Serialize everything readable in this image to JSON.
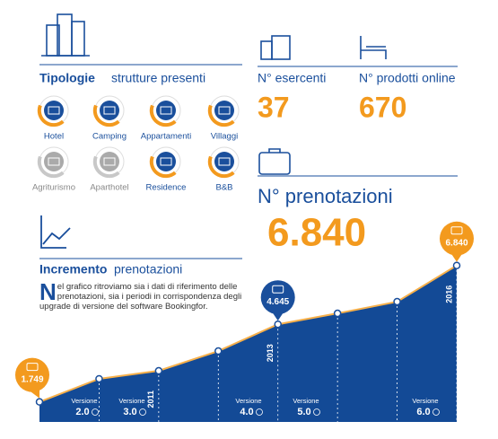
{
  "structures": {
    "title_bold": "Tipologie",
    "title_rest": "strutture presenti",
    "items": [
      {
        "label": "Hotel",
        "color": "#f39a1e"
      },
      {
        "label": "Camping",
        "color": "#f39a1e"
      },
      {
        "label": "Appartamenti",
        "color": "#f39a1e"
      },
      {
        "label": "Villaggi",
        "color": "#f39a1e"
      },
      {
        "label": "Agriturismo",
        "color": "#c8c8c8"
      },
      {
        "label": "Aparthotel",
        "color": "#c8c8c8"
      },
      {
        "label": "Residence",
        "color": "#f39a1e"
      },
      {
        "label": "B&B",
        "color": "#f39a1e"
      }
    ]
  },
  "stats": {
    "merchants_label": "N° esercenti",
    "merchants": "37",
    "products_label": "N° prodotti online",
    "products": "670",
    "bookings_label": "N° prenotazioni",
    "bookings": "6.840"
  },
  "growth": {
    "title_bold": "Incremento",
    "title_rest": "prenotazioni",
    "text": "Nel grafico ritroviamo sia i dati di riferimento delle prenotazioni, sia i periodi in corrispondenza degli upgrade di versione del software Bookingfor."
  },
  "chart_data": {
    "type": "area",
    "categories": [
      null,
      null,
      "2011",
      null,
      "2013",
      null,
      null,
      "2016"
    ],
    "values": [
      1749,
      2609,
      2910,
      3647,
      4645,
      5054,
      5489,
      6840
    ],
    "value_labels": [
      "1.749",
      null,
      null,
      null,
      "4.645",
      null,
      null,
      "6.840"
    ],
    "ylim": [
      1000,
      7200
    ],
    "color": "#134a96",
    "line_color": "#f7b04a",
    "versions": [
      {
        "label": "Versione",
        "number": "2.0"
      },
      {
        "label": "Versione",
        "number": "3.0"
      },
      {
        "label": "Versione",
        "number": "4.0"
      },
      {
        "label": "Versione",
        "number": "5.0"
      },
      {
        "label": "Versione",
        "number": "6.0"
      }
    ]
  }
}
